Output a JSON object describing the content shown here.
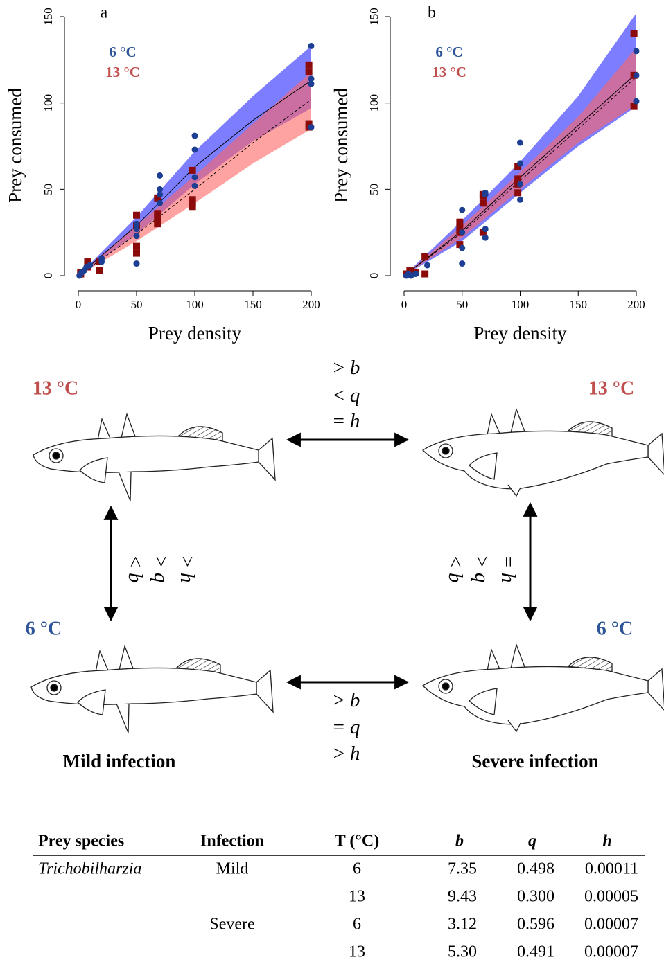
{
  "chart_data": [
    {
      "type": "scatter",
      "title": "a",
      "xlabel": "Prey density",
      "ylabel": "Prey consumed",
      "xlim": [
        0,
        200
      ],
      "ylim": [
        0,
        150
      ],
      "xticks": [
        0,
        50,
        100,
        150,
        200
      ],
      "yticks": [
        0,
        50,
        100,
        150
      ],
      "series": [
        {
          "name": "6 °C",
          "color": "#1c3f94",
          "label_color": "#2e5597",
          "marker": "circle",
          "x": [
            1,
            2,
            3,
            5,
            7,
            10,
            20,
            20,
            50,
            50,
            50,
            50,
            70,
            70,
            70,
            70,
            100,
            100,
            100,
            100,
            200,
            200,
            200,
            200
          ],
          "values": [
            0,
            1,
            2,
            3,
            5,
            6,
            8,
            10,
            7,
            23,
            27,
            30,
            42,
            47,
            50,
            58,
            52,
            57,
            73,
            81,
            86,
            111,
            114,
            133
          ]
        },
        {
          "name": "13 °C",
          "color": "#8b0a0a",
          "label_color": "#c0504d",
          "marker": "square",
          "x": [
            2,
            2,
            8,
            8,
            18,
            18,
            50,
            50,
            50,
            50,
            68,
            68,
            68,
            68,
            98,
            98,
            98,
            98,
            198,
            198,
            198,
            198
          ],
          "values": [
            1,
            2,
            5,
            8,
            3,
            8,
            13,
            17,
            29,
            35,
            30,
            33,
            36,
            45,
            40,
            42,
            44,
            61,
            86,
            88,
            118,
            122
          ]
        }
      ],
      "fits": [
        {
          "color": "#6f6fff",
          "linestyle": "solid",
          "x": [
            0,
            50,
            100,
            150,
            200
          ],
          "values": [
            0,
            29,
            63,
            90,
            113
          ],
          "lower": [
            0,
            24,
            53,
            78,
            97
          ],
          "upper": [
            0,
            34,
            72,
            104,
            133
          ]
        },
        {
          "color": "#ff6464",
          "linestyle": "dashed",
          "x": [
            0,
            50,
            100,
            150,
            200
          ],
          "values": [
            0,
            24,
            50,
            77,
            102
          ],
          "lower": [
            0,
            20,
            42,
            65,
            85
          ],
          "upper": [
            0,
            29,
            58,
            88,
            118
          ]
        }
      ]
    },
    {
      "type": "scatter",
      "title": "b",
      "xlabel": "Prey density",
      "ylabel": "Prey consumed",
      "xlim": [
        0,
        200
      ],
      "ylim": [
        0,
        150
      ],
      "xticks": [
        0,
        50,
        100,
        150,
        200
      ],
      "yticks": [
        0,
        50,
        100,
        150
      ],
      "series": [
        {
          "name": "6 °C",
          "color": "#1c3f94",
          "label_color": "#2e5597",
          "marker": "circle",
          "x": [
            2,
            4,
            6,
            10,
            20,
            50,
            50,
            50,
            50,
            70,
            70,
            70,
            70,
            100,
            100,
            100,
            100,
            200,
            200,
            200
          ],
          "values": [
            0,
            1,
            0,
            1,
            6,
            7,
            16,
            25,
            38,
            22,
            27,
            47,
            48,
            44,
            53,
            65,
            77,
            101,
            116,
            130
          ]
        },
        {
          "name": "13 °C",
          "color": "#8b0a0a",
          "label_color": "#c0504d",
          "marker": "square",
          "x": [
            2,
            5,
            10,
            18,
            18,
            48,
            48,
            48,
            48,
            68,
            68,
            68,
            68,
            98,
            98,
            98,
            98,
            198,
            198,
            198
          ],
          "values": [
            1,
            3,
            2,
            1,
            11,
            18,
            25,
            28,
            31,
            25,
            42,
            46,
            47,
            48,
            53,
            56,
            63,
            98,
            116,
            140
          ]
        }
      ],
      "fits": [
        {
          "color": "#6f6fff",
          "linestyle": "solid",
          "x": [
            0,
            50,
            100,
            150,
            200
          ],
          "values": [
            0,
            26,
            57,
            87,
            117
          ],
          "lower": [
            0,
            20,
            48,
            75,
            98
          ],
          "upper": [
            0,
            32,
            66,
            104,
            152
          ]
        },
        {
          "color": "#ff6464",
          "linestyle": "dashed",
          "x": [
            0,
            50,
            100,
            150,
            200
          ],
          "values": [
            0,
            25,
            55,
            85,
            115
          ],
          "lower": [
            0,
            22,
            50,
            77,
            99
          ],
          "upper": [
            0,
            29,
            60,
            92,
            132
          ]
        }
      ]
    }
  ],
  "diagram": {
    "temperatures": [
      {
        "label": "13 °C",
        "color": "#c0504d"
      },
      {
        "label": "13 °C",
        "color": "#c0504d"
      },
      {
        "label": "6 °C",
        "color": "#2e5597"
      },
      {
        "label": "6 °C",
        "color": "#2e5597"
      }
    ],
    "comparisons": [
      [
        {
          "op": ">",
          "var": "b"
        },
        {
          "op": "<",
          "var": "q"
        },
        {
          "op": "=",
          "var": "h"
        }
      ],
      [
        {
          "op": "<",
          "var": "b"
        },
        {
          "op": ">",
          "var": "q"
        },
        {
          "op": ">",
          "var": "h"
        }
      ],
      [
        {
          "op": "<",
          "var": "b"
        },
        {
          "op": ">",
          "var": "q"
        },
        {
          "op": "=",
          "var": "h"
        }
      ],
      [
        {
          "op": ">",
          "var": "b"
        },
        {
          "op": "=",
          "var": "q"
        },
        {
          "op": ">",
          "var": "h"
        }
      ]
    ],
    "labels": [
      "Mild infection",
      "Severe infection"
    ]
  },
  "table": {
    "header": [
      "Prey species",
      "Infection",
      "T (°C)",
      "b",
      "q",
      "h"
    ],
    "rows": [
      [
        "Trichobilharzia",
        "Mild",
        "6",
        "7.35",
        "0.498",
        "0.00011"
      ],
      [
        null,
        null,
        "13",
        "9.43",
        "0.300",
        "0.00005"
      ],
      [
        null,
        "Severe",
        "6",
        "3.12",
        "0.596",
        "0.00007"
      ],
      [
        null,
        null,
        "13",
        "5.30",
        "0.491",
        "0.00007"
      ]
    ]
  }
}
